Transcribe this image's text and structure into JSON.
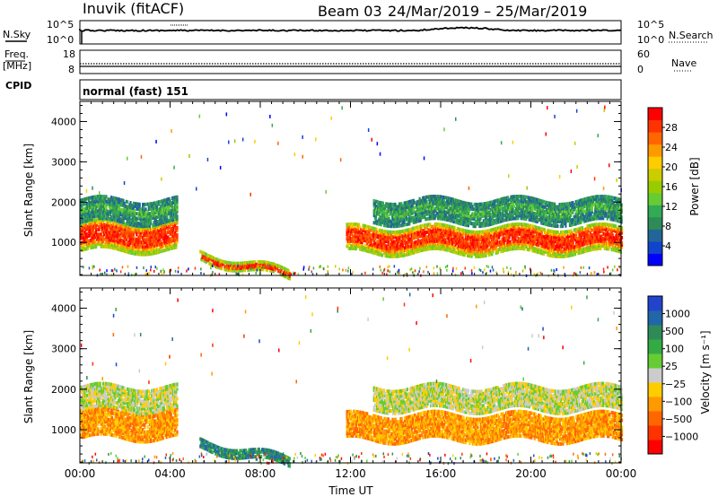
{
  "header": {
    "title": "Inuvik (fitACF)",
    "beam": "Beam 03",
    "date_range": "24/Mar/2019 – 25/Mar/2019"
  },
  "strip_nsky": {
    "left_label": "N.Sky",
    "left_ticks": [
      "10^5",
      "10^0"
    ],
    "right_ticks": [
      "10^5",
      "10^0"
    ],
    "right_label": "N.Search"
  },
  "strip_freq": {
    "left_label_1": "Freq.",
    "left_label_2": "[MHz]",
    "left_ticks": [
      "18",
      "8"
    ],
    "right_ticks": [
      "60",
      "0"
    ],
    "right_label": "Nave"
  },
  "strip_cpid": {
    "label": "CPID",
    "value": "normal (fast) 151"
  },
  "power_panel": {
    "ylabel": "Slant Range [km]",
    "colorbar_label": "Power [dB]",
    "colorbar_ticks": [
      "28",
      "24",
      "20",
      "16",
      "12",
      "8",
      "4"
    ],
    "colors": [
      "#ff0000",
      "#ff3300",
      "#ff6600",
      "#ff9900",
      "#ffcc00",
      "#cccc00",
      "#99cc00",
      "#66cc33",
      "#33aa55",
      "#2e8b57",
      "#226699",
      "#1144cc",
      "#0000ff"
    ]
  },
  "velocity_panel": {
    "ylabel": "Slant Range [km]",
    "colorbar_label": "Velocity [m s⁻¹]",
    "colorbar_ticks": [
      "1000",
      "500",
      "100",
      "25",
      "−25",
      "−100",
      "−500",
      "−1000"
    ],
    "colors": [
      "#2244cc",
      "#2266aa",
      "#2e8b57",
      "#33aa44",
      "#66cc33",
      "#cccccc",
      "#ffcc00",
      "#ff9900",
      "#ff6600",
      "#ff3300",
      "#ff0000"
    ]
  },
  "xaxis": {
    "label": "Time UT",
    "ticks": [
      "00:00",
      "04:00",
      "08:00",
      "12:00",
      "16:00",
      "20:00",
      "00:00"
    ]
  },
  "chart_data": {
    "type": "heatmap",
    "x_range_hours": [
      0,
      24
    ],
    "y_range_km": [
      180,
      4500
    ],
    "y_ticks": [
      1000,
      2000,
      3000,
      4000
    ],
    "regions": [
      {
        "name": "near_band_00_04",
        "t": [
          0.0,
          4.3
        ],
        "r": [
          800,
          1500
        ],
        "power": 26,
        "velocity": -100
      },
      {
        "name": "upper_band_00_04",
        "t": [
          0.0,
          4.3
        ],
        "r": [
          1500,
          2100
        ],
        "power": 14,
        "velocity": 25
      },
      {
        "name": "descending_trace_05_10",
        "t": [
          5.3,
          9.3
        ],
        "r": [
          250,
          750
        ],
        "power": 22,
        "velocity": 100
      },
      {
        "name": "band_12_24",
        "t": [
          11.8,
          24.0
        ],
        "r": [
          750,
          1400
        ],
        "power": 24,
        "velocity": -100
      },
      {
        "name": "upper_band_12_24",
        "t": [
          13.0,
          24.0
        ],
        "r": [
          1500,
          2100
        ],
        "power": 12,
        "velocity": 25
      }
    ]
  }
}
